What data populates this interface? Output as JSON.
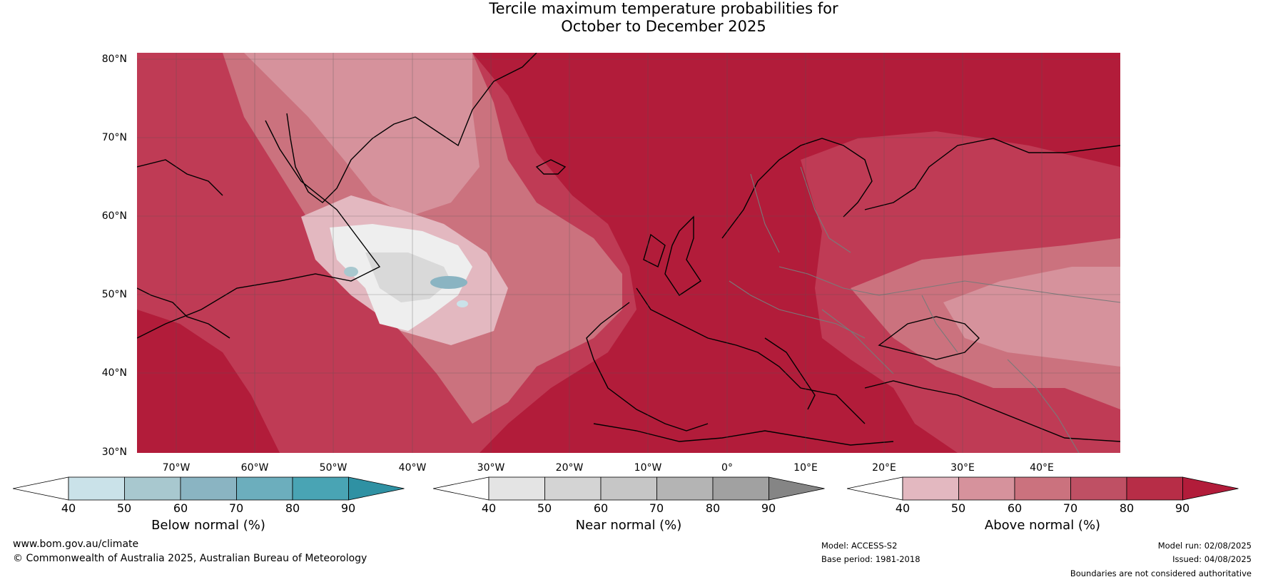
{
  "title": {
    "line1": "Tercile maximum temperature probabilities for",
    "line2": "October to December 2025"
  },
  "map": {
    "lat_labels": [
      "80°N",
      "70°N",
      "60°N",
      "50°N",
      "40°N",
      "30°N"
    ],
    "lon_labels": [
      "70°W",
      "60°W",
      "50°W",
      "40°W",
      "30°W",
      "20°W",
      "10°W",
      "0°",
      "10°E",
      "20°E",
      "30°E",
      "40°E"
    ]
  },
  "colorbars": {
    "below": {
      "title": "Below normal (%)",
      "ticks": [
        "40",
        "50",
        "60",
        "70",
        "80",
        "90"
      ],
      "colors": [
        "#ffffff",
        "#cae2e9",
        "#a8c8cf",
        "#8ab4c2",
        "#6caebd",
        "#49a4b4",
        "#2f91a3"
      ]
    },
    "near": {
      "title": "Near normal (%)",
      "ticks": [
        "40",
        "50",
        "60",
        "70",
        "80",
        "90"
      ],
      "colors": [
        "#ffffff",
        "#e4e4e4",
        "#d4d4d4",
        "#c6c6c6",
        "#b4b4b4",
        "#a1a1a1",
        "#858585"
      ]
    },
    "above": {
      "title": "Above normal (%)",
      "ticks": [
        "40",
        "50",
        "60",
        "70",
        "80",
        "90"
      ],
      "colors": [
        "#ffffff",
        "#e3b8c0",
        "#d6929c",
        "#cb727e",
        "#bf5064",
        "#b72d47",
        "#b21c3a"
      ]
    }
  },
  "footer": {
    "website": "www.bom.gov.au/climate",
    "copyright": "© Commonwealth of Australia 2025, Australian Bureau of Meteorology",
    "model": "Model: ACCESS-S2",
    "base_period": "Base period: 1981-2018",
    "model_run": "Model run: 02/08/2025",
    "issued": "Issued: 04/08/2025",
    "disclaimer": "Boundaries are not considered authoritative"
  }
}
